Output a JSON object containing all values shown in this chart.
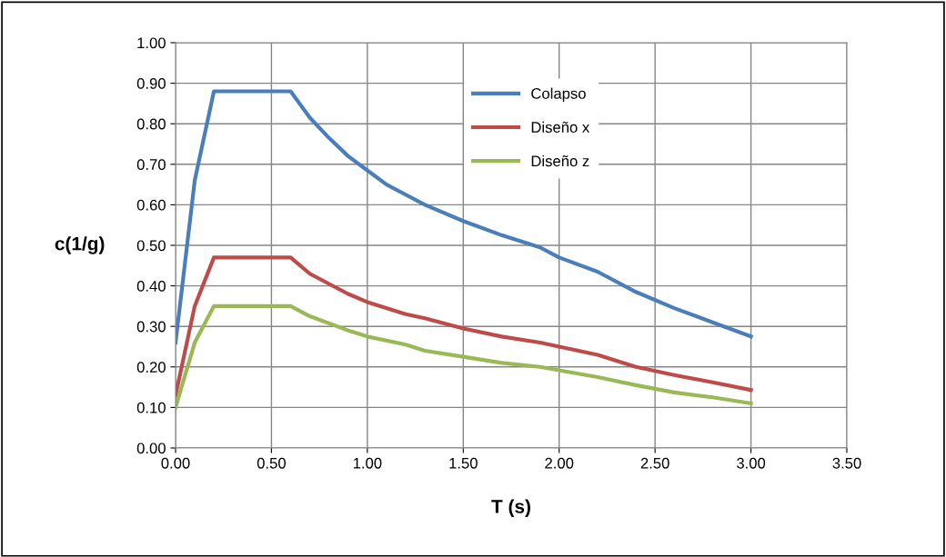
{
  "chart_data": {
    "type": "line",
    "xlabel": "T (s)",
    "ylabel": "c(1/g)",
    "xlim": [
      0,
      3.5
    ],
    "ylim": [
      0,
      1.0
    ],
    "xticks": [
      {
        "value": 0,
        "label": "0.00"
      },
      {
        "value": 0.5,
        "label": "0.50"
      },
      {
        "value": 1.0,
        "label": "1.00"
      },
      {
        "value": 1.5,
        "label": "1.50"
      },
      {
        "value": 2.0,
        "label": "2.00"
      },
      {
        "value": 2.5,
        "label": "2.50"
      },
      {
        "value": 3.0,
        "label": "3.00"
      },
      {
        "value": 3.5,
        "label": "3.50"
      }
    ],
    "yticks": [
      {
        "value": 0,
        "label": "0.00"
      },
      {
        "value": 0.1,
        "label": "0.10"
      },
      {
        "value": 0.2,
        "label": "0.20"
      },
      {
        "value": 0.3,
        "label": "0.30"
      },
      {
        "value": 0.4,
        "label": "0.40"
      },
      {
        "value": 0.5,
        "label": "0.50"
      },
      {
        "value": 0.6,
        "label": "0.60"
      },
      {
        "value": 0.7,
        "label": "0.70"
      },
      {
        "value": 0.8,
        "label": "0.80"
      },
      {
        "value": 0.9,
        "label": "0.90"
      },
      {
        "value": 1.0,
        "label": "1.00"
      }
    ],
    "grid": true,
    "legend": "top",
    "marker": "none",
    "line_style": "solid",
    "series": [
      {
        "name": "Colapso",
        "color": "#4a7ebb",
        "x": [
          0,
          0.1,
          0.2,
          0.6,
          0.7,
          0.8,
          0.9,
          1.0,
          1.1,
          1.2,
          1.3,
          1.5,
          1.7,
          1.9,
          2.0,
          2.2,
          2.4,
          2.6,
          2.8,
          3.0
        ],
        "values": [
          0.26,
          0.66,
          0.88,
          0.88,
          0.815,
          0.765,
          0.72,
          0.685,
          0.65,
          0.625,
          0.6,
          0.56,
          0.525,
          0.495,
          0.47,
          0.435,
          0.385,
          0.345,
          0.31,
          0.275
        ]
      },
      {
        "name": "Diseño x",
        "color": "#be4b48",
        "x": [
          0,
          0.1,
          0.2,
          0.6,
          0.7,
          0.9,
          1.0,
          1.2,
          1.3,
          1.5,
          1.7,
          1.9,
          2.2,
          2.4,
          2.6,
          2.8,
          3.0
        ],
        "values": [
          0.13,
          0.35,
          0.47,
          0.47,
          0.43,
          0.38,
          0.36,
          0.33,
          0.32,
          0.295,
          0.275,
          0.26,
          0.23,
          0.2,
          0.18,
          0.162,
          0.143
        ]
      },
      {
        "name": "Diseño z",
        "color": "#98b954",
        "x": [
          0,
          0.1,
          0.2,
          0.6,
          0.7,
          0.9,
          1.0,
          1.2,
          1.3,
          1.5,
          1.7,
          1.9,
          2.2,
          2.4,
          2.6,
          2.8,
          3.0
        ],
        "values": [
          0.1,
          0.26,
          0.35,
          0.35,
          0.325,
          0.29,
          0.275,
          0.255,
          0.24,
          0.225,
          0.21,
          0.2,
          0.175,
          0.155,
          0.137,
          0.125,
          0.11
        ]
      }
    ]
  }
}
